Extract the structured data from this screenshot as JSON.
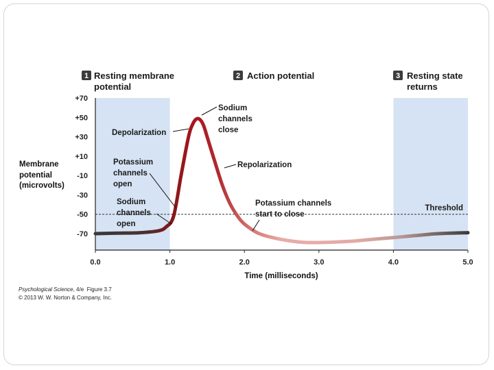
{
  "chart_data": {
    "type": "line",
    "title": "",
    "xlabel": "Time (milliseconds)",
    "ylabel": "Membrane potential (microvolts)",
    "xlim": [
      0.0,
      5.0
    ],
    "ylim": [
      -80,
      70
    ],
    "x_ticks": [
      "0.0",
      "1.0",
      "2.0",
      "3.0",
      "4.0",
      "5.0"
    ],
    "y_ticks": [
      "+70",
      "+50",
      "+30",
      "+10",
      "-10",
      "-30",
      "-50",
      "-70"
    ],
    "y_tick_values": [
      70,
      50,
      30,
      10,
      -10,
      -30,
      -50,
      -70
    ],
    "threshold": {
      "value": -50,
      "label": "Threshold"
    },
    "shaded_regions": [
      {
        "x": [
          0.0,
          1.0
        ]
      },
      {
        "x": [
          4.0,
          5.0
        ]
      }
    ],
    "shade_color": "#d6e3f4",
    "series": [
      {
        "x": [
          0.0,
          0.3,
          0.6,
          0.85,
          0.95,
          1.05,
          1.15,
          1.25,
          1.3,
          1.35,
          1.4,
          1.45,
          1.5,
          1.6,
          1.7,
          1.8,
          1.9,
          2.0,
          2.2,
          2.5,
          2.8,
          3.1,
          3.4,
          3.7,
          4.0,
          4.3,
          4.6,
          5.0
        ],
        "y": [
          -70,
          -69.5,
          -69,
          -67,
          -63,
          -52,
          -10,
          30,
          42,
          48,
          48,
          42,
          30,
          5,
          -19,
          -38,
          -51,
          -60,
          -70,
          -76,
          -79,
          -79,
          -78,
          -76,
          -74,
          -72,
          -70,
          -69
        ]
      }
    ],
    "colors": {
      "peak": "#a8141c",
      "falling": "#e8aca7",
      "recovery": "#3a3a3a"
    }
  },
  "phases": [
    {
      "number": "1",
      "line1": "Resting membrane",
      "line2": "potential"
    },
    {
      "number": "2",
      "line1": "Action potential",
      "line2": ""
    },
    {
      "number": "3",
      "line1": "Resting state",
      "line2": "returns"
    }
  ],
  "ylabel_lines": [
    "Membrane",
    "potential",
    "(microvolts)"
  ],
  "annotations": {
    "depolarization": "Depolarization",
    "sodium_close": [
      "Sodium",
      "channels",
      "close"
    ],
    "repolarization": "Repolarization",
    "potassium_open": [
      "Potassium",
      "channels",
      "open"
    ],
    "sodium_open": [
      "Sodium",
      "channels",
      "open"
    ],
    "potassium_close": [
      "Potassium channels",
      "start to close"
    ]
  },
  "credit": {
    "title": "Psychological Science",
    "edition": ", 4/e",
    "figure": "Figure 3.7",
    "copyright": "© 2013 W. W. Norton & Company, Inc."
  }
}
